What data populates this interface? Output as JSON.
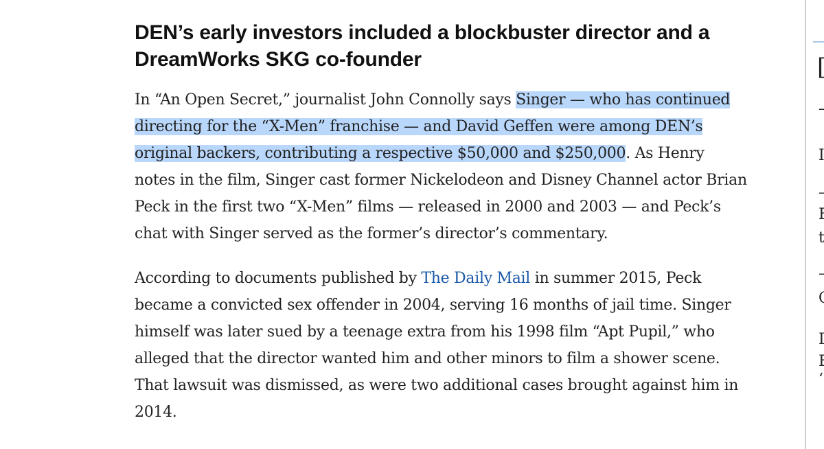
{
  "article": {
    "heading_lines": [
      "DEN’s early investors included a blockbuster director and a",
      "DreamWorks SKG co-founder"
    ],
    "paragraph1": {
      "line1_pre": "In “An Open Secret,” journalist John Connolly says ",
      "line1_hl": "Singer — who has continued",
      "line2_hl": "directing for the “X-Men” franchise — and David Geffen were among DEN’s",
      "line3_hl": "original backers, contributing a respective $50,000 and $250,000",
      "line3_post": ". As Henry",
      "line4": "notes in the film, Singer cast former Nickelodeon and Disney Channel actor Brian",
      "line5": "Peck in the first two “X-Men” films — released in 2000 and 2003 — and Peck’s",
      "line6": "chat with Singer served as the former’s director’s commentary."
    },
    "paragraph2": {
      "line1_pre": "According to documents published by ",
      "line1_link": "The Daily Mail",
      "line1_post": " in summer 2015, Peck",
      "line2": "became a convicted sex offender in 2004, serving 16 months of jail time. Singer",
      "line3": "himself was later sued by a teenage extra from his 1998 film “Apt Pupil,” who",
      "line4": "alleged that the director wanted him and other minors to film a shower scene.",
      "line5": "That lawsuit was dismissed, as were two additional cases brought against him in",
      "line6": "2014."
    }
  },
  "sidebar_fragments": [
    {
      "text": "[",
      "top": 0
    },
    {
      "text": "–",
      "top": 0
    },
    {
      "text": "I",
      "top": 0
    },
    {
      "text": "–",
      "top": 0
    },
    {
      "text": "F",
      "top": 0
    },
    {
      "text": "t",
      "top": 0
    },
    {
      "text": "–",
      "top": 0
    },
    {
      "text": "C",
      "top": 0
    },
    {
      "text": "D",
      "top": 0
    },
    {
      "text": "E",
      "top": 0
    },
    {
      "text": "‘",
      "top": 0
    }
  ]
}
